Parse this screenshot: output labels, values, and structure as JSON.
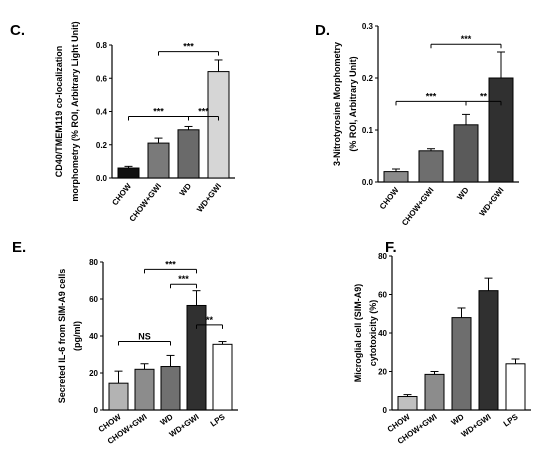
{
  "chart_data": [
    {
      "panel": "C.",
      "type": "bar",
      "ylabel": [
        "CD40/TMEM119 co-localization",
        "morphometry (% ROI, Arbitrary Light Unit)"
      ],
      "categories": [
        "CHOW",
        "CHOW+GWI",
        "WD",
        "WD+GWI"
      ],
      "values": [
        0.06,
        0.21,
        0.29,
        0.64
      ],
      "errors": [
        0.01,
        0.03,
        0.02,
        0.07
      ],
      "colors": [
        "#111111",
        "#7a7a7a",
        "#6a6a6a",
        "#d6d6d6"
      ],
      "ylim": [
        0,
        0.8
      ],
      "yticks": [
        0.0,
        0.2,
        0.4,
        0.6,
        0.8
      ],
      "ytick_labels": [
        "0.0",
        "0.2",
        "0.4",
        "0.6",
        "0.8"
      ],
      "significance": [
        {
          "from": 1,
          "to": 3,
          "y": 0.76,
          "label": "***"
        },
        {
          "from": 0,
          "to": 2,
          "y": 0.37,
          "label": "***"
        },
        {
          "from": 2,
          "to": 3,
          "y": 0.37,
          "label": "***"
        }
      ]
    },
    {
      "panel": "D.",
      "type": "bar",
      "ylabel": [
        "3-Nitrotyrosine Morphometry",
        "(% ROI, Arbitrary Unit)"
      ],
      "categories": [
        "CHOW",
        "CHOW+GWI",
        "WD",
        "WD+GWI"
      ],
      "values": [
        0.02,
        0.06,
        0.11,
        0.2
      ],
      "errors": [
        0.005,
        0.004,
        0.02,
        0.05
      ],
      "colors": [
        "#8a8a8a",
        "#6e6e6e",
        "#5a5a5a",
        "#303030"
      ],
      "ylim": [
        0,
        0.3
      ],
      "yticks": [
        0.0,
        0.1,
        0.2,
        0.3
      ],
      "ytick_labels": [
        "0.0",
        "0.1",
        "0.2",
        "0.3"
      ],
      "significance": [
        {
          "from": 1,
          "to": 3,
          "y": 0.265,
          "label": "***"
        },
        {
          "from": 0,
          "to": 2,
          "y": 0.155,
          "label": "***"
        },
        {
          "from": 2,
          "to": 3,
          "y": 0.155,
          "label": "**"
        }
      ]
    },
    {
      "panel": "E.",
      "type": "bar",
      "ylabel": [
        "Secreted IL-6 from SIM-A9 cells",
        "(pg/ml)"
      ],
      "categories": [
        "CHOW",
        "CHOW+GWI",
        "WD",
        "WD+GWI",
        "LPS"
      ],
      "values": [
        14.5,
        22,
        23.5,
        56.5,
        35.5
      ],
      "errors": [
        6.5,
        3,
        6,
        8,
        1.5
      ],
      "colors": [
        "#b3b3b3",
        "#8c8c8c",
        "#707070",
        "#303030",
        "#ffffff"
      ],
      "ylim": [
        0,
        80
      ],
      "yticks": [
        0,
        20,
        40,
        60,
        80
      ],
      "ytick_labels": [
        "0",
        "20",
        "40",
        "60",
        "80"
      ],
      "significance": [
        {
          "from": 1,
          "to": 3,
          "y": 76,
          "label": "***"
        },
        {
          "from": 0,
          "to": 2,
          "y": 37,
          "label": "NS"
        },
        {
          "from": 2,
          "to": 3,
          "y": 68,
          "label": "***"
        },
        {
          "from": 3,
          "to": 4,
          "y": 46,
          "label": "**"
        }
      ]
    },
    {
      "panel": "F.",
      "type": "bar",
      "ylabel": [
        "Microglial cell (SIM-A9)",
        "cytotoxicity (%)"
      ],
      "categories": [
        "CHOW",
        "CHOW+GWI",
        "WD",
        "WD+GWI",
        "LPS"
      ],
      "values": [
        7,
        18.5,
        48,
        62,
        24
      ],
      "errors": [
        1,
        1.5,
        5,
        6.5,
        2.5
      ],
      "colors": [
        "#c0c0c0",
        "#8c8c8c",
        "#6e6e6e",
        "#303030",
        "#ffffff"
      ],
      "ylim": [
        0,
        80
      ],
      "yticks": [
        0,
        20,
        40,
        60,
        80
      ],
      "ytick_labels": [
        "0",
        "20",
        "40",
        "60",
        "80"
      ],
      "significance": []
    }
  ]
}
